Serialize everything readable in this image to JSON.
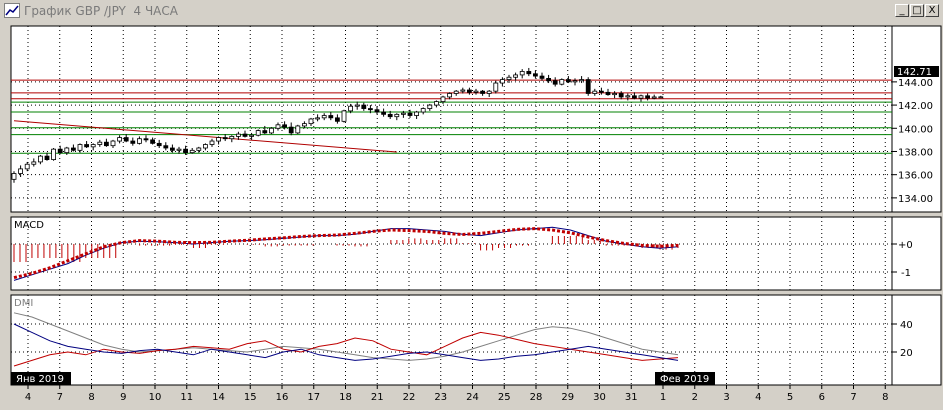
{
  "window": {
    "title": "График GBP /JPY  4 ЧАСА",
    "minimize_glyph": "_",
    "restore_glyph": "□",
    "close_glyph": "X"
  },
  "price_panel": {
    "y_ticks": [
      "144.00",
      "142.00",
      "140.00",
      "138.00",
      "136.00",
      "134.00"
    ],
    "current_price": "142.71",
    "resistance_levels": [
      144.15,
      143.05,
      142.55
    ],
    "support_levels": [
      142.25,
      141.4,
      140.05,
      139.45,
      137.85
    ],
    "trendline": {
      "from": {
        "x": 0,
        "y": 140.65
      },
      "to": {
        "x": 58,
        "y": 137.95
      }
    },
    "candles": [
      [
        135.6,
        136.3,
        135.3,
        136.1
      ],
      [
        136.1,
        136.8,
        135.8,
        136.5
      ],
      [
        136.5,
        137.1,
        136.3,
        136.9
      ],
      [
        136.9,
        137.4,
        136.7,
        137.1
      ],
      [
        137.1,
        137.7,
        136.9,
        137.6
      ],
      [
        137.6,
        137.9,
        137.2,
        137.3
      ],
      [
        137.3,
        138.3,
        137.2,
        138.2
      ],
      [
        138.2,
        138.5,
        137.8,
        137.9
      ],
      [
        137.9,
        138.4,
        137.7,
        138.3
      ],
      [
        138.3,
        138.6,
        138.0,
        138.1
      ],
      [
        138.1,
        138.7,
        137.9,
        138.6
      ],
      [
        138.6,
        138.9,
        138.3,
        138.4
      ],
      [
        138.4,
        138.7,
        138.1,
        138.6
      ],
      [
        138.6,
        139.0,
        138.4,
        138.8
      ],
      [
        138.8,
        139.1,
        138.4,
        138.5
      ],
      [
        138.5,
        139.0,
        138.3,
        138.9
      ],
      [
        138.9,
        139.4,
        138.7,
        139.2
      ],
      [
        139.2,
        139.5,
        138.8,
        138.9
      ],
      [
        138.9,
        139.2,
        138.5,
        138.7
      ],
      [
        138.7,
        139.3,
        138.6,
        139.1
      ],
      [
        139.1,
        139.4,
        138.8,
        139.0
      ],
      [
        139.0,
        139.2,
        138.6,
        138.7
      ],
      [
        138.7,
        139.0,
        138.3,
        138.5
      ],
      [
        138.5,
        138.8,
        138.1,
        138.3
      ],
      [
        138.3,
        138.6,
        137.9,
        138.1
      ],
      [
        138.1,
        138.4,
        137.8,
        138.2
      ],
      [
        138.2,
        138.5,
        137.7,
        137.9
      ],
      [
        137.9,
        138.3,
        137.8,
        138.1
      ],
      [
        138.1,
        138.4,
        137.9,
        138.3
      ],
      [
        138.3,
        138.7,
        138.1,
        138.6
      ],
      [
        138.6,
        139.1,
        138.4,
        138.9
      ],
      [
        138.9,
        139.3,
        138.6,
        139.2
      ],
      [
        139.2,
        139.5,
        138.9,
        139.1
      ],
      [
        139.1,
        139.4,
        138.8,
        139.3
      ],
      [
        139.3,
        139.7,
        139.0,
        139.5
      ],
      [
        139.5,
        139.8,
        139.2,
        139.3
      ],
      [
        139.3,
        139.6,
        139.0,
        139.4
      ],
      [
        139.4,
        139.9,
        139.3,
        139.8
      ],
      [
        139.8,
        140.2,
        139.5,
        139.6
      ],
      [
        139.6,
        140.1,
        139.5,
        140.0
      ],
      [
        140.0,
        140.5,
        139.8,
        140.3
      ],
      [
        140.3,
        140.6,
        139.9,
        140.1
      ],
      [
        140.1,
        140.5,
        139.4,
        139.6
      ],
      [
        139.6,
        140.3,
        139.5,
        140.2
      ],
      [
        140.2,
        140.6,
        140.0,
        140.4
      ],
      [
        140.4,
        140.9,
        140.2,
        140.8
      ],
      [
        140.8,
        141.2,
        140.6,
        140.9
      ],
      [
        140.9,
        141.3,
        140.7,
        141.1
      ],
      [
        141.1,
        141.4,
        140.7,
        140.9
      ],
      [
        140.9,
        141.2,
        140.4,
        140.6
      ],
      [
        140.6,
        141.6,
        140.5,
        141.5
      ],
      [
        141.5,
        142.1,
        141.3,
        141.9
      ],
      [
        141.9,
        142.3,
        141.6,
        142.0
      ],
      [
        142.0,
        142.2,
        141.5,
        141.7
      ],
      [
        141.7,
        142.0,
        141.3,
        141.6
      ],
      [
        141.6,
        141.9,
        141.2,
        141.4
      ],
      [
        141.4,
        141.7,
        141.0,
        141.2
      ],
      [
        141.2,
        141.5,
        140.8,
        141.0
      ],
      [
        141.0,
        141.3,
        140.7,
        141.2
      ],
      [
        141.2,
        141.5,
        140.9,
        141.3
      ],
      [
        141.3,
        141.6,
        140.9,
        141.1
      ],
      [
        141.1,
        141.5,
        140.8,
        141.4
      ],
      [
        141.4,
        141.8,
        141.2,
        141.7
      ],
      [
        141.7,
        142.1,
        141.5,
        142.0
      ],
      [
        142.0,
        142.4,
        141.8,
        142.3
      ],
      [
        142.3,
        142.8,
        142.1,
        142.7
      ],
      [
        142.7,
        143.1,
        142.5,
        143.0
      ],
      [
        143.0,
        143.3,
        142.8,
        143.2
      ],
      [
        143.2,
        143.5,
        143.0,
        143.3
      ],
      [
        143.3,
        143.5,
        142.9,
        143.1
      ],
      [
        143.1,
        143.4,
        142.9,
        143.2
      ],
      [
        143.2,
        143.3,
        142.8,
        143.0
      ],
      [
        143.0,
        143.3,
        142.7,
        143.2
      ],
      [
        143.2,
        144.1,
        143.0,
        143.9
      ],
      [
        143.9,
        144.4,
        143.6,
        144.2
      ],
      [
        144.2,
        144.6,
        143.9,
        144.4
      ],
      [
        144.4,
        144.8,
        144.1,
        144.6
      ],
      [
        144.6,
        145.1,
        144.3,
        144.9
      ],
      [
        144.9,
        145.2,
        144.5,
        144.7
      ],
      [
        144.7,
        145.0,
        144.3,
        144.5
      ],
      [
        144.5,
        144.8,
        144.1,
        144.3
      ],
      [
        144.3,
        144.6,
        143.9,
        144.1
      ],
      [
        144.1,
        144.4,
        143.6,
        143.8
      ],
      [
        143.8,
        144.3,
        143.7,
        144.2
      ],
      [
        144.2,
        144.5,
        143.9,
        144.0
      ],
      [
        144.0,
        144.3,
        143.7,
        144.1
      ],
      [
        144.1,
        144.5,
        143.9,
        144.2
      ],
      [
        144.2,
        144.4,
        142.8,
        143.0
      ],
      [
        143.0,
        143.4,
        142.8,
        143.2
      ],
      [
        143.2,
        143.5,
        142.9,
        143.1
      ],
      [
        143.1,
        143.4,
        142.8,
        142.9
      ],
      [
        142.9,
        143.2,
        142.6,
        143.0
      ],
      [
        143.0,
        143.2,
        142.5,
        142.7
      ],
      [
        142.7,
        143.0,
        142.4,
        142.8
      ],
      [
        142.8,
        143.1,
        142.5,
        142.6
      ],
      [
        142.6,
        142.9,
        142.3,
        142.8
      ],
      [
        142.8,
        143.0,
        142.4,
        142.6
      ],
      [
        142.6,
        142.9,
        142.5,
        142.7
      ],
      [
        142.7,
        142.8,
        142.6,
        142.71
      ]
    ]
  },
  "macd_panel": {
    "label": "MACD",
    "y_ticks": [
      "+0",
      "-1"
    ],
    "macd": [
      -1.3,
      -1.1,
      -0.9,
      -0.7,
      -0.4,
      -0.15,
      0.05,
      0.1,
      0.08,
      0.05,
      0.0,
      0.05,
      0.1,
      0.12,
      0.15,
      0.2,
      0.25,
      0.3,
      0.3,
      0.35,
      0.45,
      0.55,
      0.55,
      0.5,
      0.45,
      0.35,
      0.3,
      0.4,
      0.5,
      0.55,
      0.6,
      0.5,
      0.3,
      0.1,
      0.0,
      -0.1,
      -0.15,
      -0.1
    ],
    "signal": [
      -1.2,
      -1.05,
      -0.85,
      -0.6,
      -0.35,
      -0.1,
      0.05,
      0.12,
      0.1,
      0.06,
      0.05,
      0.06,
      0.1,
      0.13,
      0.18,
      0.22,
      0.27,
      0.3,
      0.32,
      0.38,
      0.45,
      0.5,
      0.48,
      0.45,
      0.38,
      0.34,
      0.38,
      0.45,
      0.52,
      0.55,
      0.5,
      0.4,
      0.25,
      0.12,
      0.02,
      -0.05,
      -0.08,
      -0.05
    ]
  },
  "dmi_panel": {
    "label": "DMI",
    "y_ticks": [
      "40",
      "20"
    ],
    "adx": [
      48,
      45,
      40,
      35,
      30,
      25,
      22,
      20,
      21,
      22,
      23,
      22,
      21,
      20,
      22,
      24,
      23,
      22,
      20,
      18,
      16,
      15,
      14,
      15,
      17,
      20,
      24,
      28,
      32,
      36,
      38,
      37,
      34,
      30,
      26,
      22,
      20,
      18
    ],
    "plus_di": [
      10,
      14,
      18,
      20,
      18,
      22,
      20,
      19,
      21,
      22,
      24,
      23,
      22,
      26,
      28,
      22,
      20,
      24,
      26,
      30,
      28,
      22,
      20,
      18,
      24,
      30,
      34,
      32,
      29,
      26,
      24,
      22,
      20,
      18,
      16,
      14,
      15,
      16
    ],
    "minus_di": [
      40,
      34,
      28,
      24,
      22,
      20,
      19,
      21,
      22,
      20,
      18,
      22,
      20,
      18,
      16,
      20,
      22,
      18,
      16,
      14,
      15,
      17,
      19,
      20,
      18,
      16,
      14,
      15,
      17,
      18,
      20,
      22,
      24,
      22,
      20,
      18,
      16,
      14
    ]
  },
  "x_axis": {
    "labels": [
      "4",
      "7",
      "8",
      "9",
      "10",
      "11",
      "14",
      "15",
      "16",
      "17",
      "18",
      "21",
      "22",
      "23",
      "24",
      "25",
      "28",
      "29",
      "30",
      "31",
      "1",
      "2",
      "3",
      "4",
      "5",
      "6",
      "7",
      "8"
    ],
    "month_start_label": "Янв 2019",
    "month_end_label": "Фев 2019"
  },
  "colors": {
    "background": "#ffffff",
    "grid": "#000000",
    "resistance": "#b00000",
    "support": "#008000",
    "macd_line": "#000080",
    "signal_line": "#c00000",
    "adx": "#808080",
    "plus_di": "#c00000",
    "minus_di": "#000080"
  }
}
